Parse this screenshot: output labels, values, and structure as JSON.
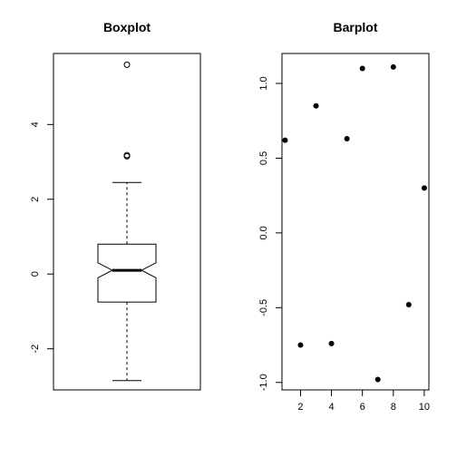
{
  "chart_data": [
    {
      "type": "box",
      "title": "Boxplot",
      "notched": true,
      "ylim": [
        -3.1,
        5.9
      ],
      "y_ticks": [
        -2,
        0,
        2,
        4
      ],
      "stats": {
        "whisker_low": -2.85,
        "q1": -0.75,
        "median": 0.1,
        "q3": 0.8,
        "whisker_high": 2.45,
        "notch_low": -0.1,
        "notch_high": 0.3
      },
      "outliers": [
        3.15,
        3.18,
        5.6
      ]
    },
    {
      "type": "scatter",
      "title": "Barplot",
      "xlim": [
        0.8,
        10.3
      ],
      "ylim": [
        -1.05,
        1.2
      ],
      "x_ticks": [
        2,
        4,
        6,
        8,
        10
      ],
      "y_ticks": [
        -1.0,
        -0.5,
        0.0,
        0.5,
        1.0
      ],
      "x": [
        1,
        2,
        3,
        4,
        5,
        6,
        7,
        8,
        9,
        10
      ],
      "y": [
        0.62,
        -0.75,
        0.85,
        -0.74,
        0.63,
        1.1,
        -0.98,
        1.11,
        -0.48,
        0.3
      ]
    }
  ]
}
